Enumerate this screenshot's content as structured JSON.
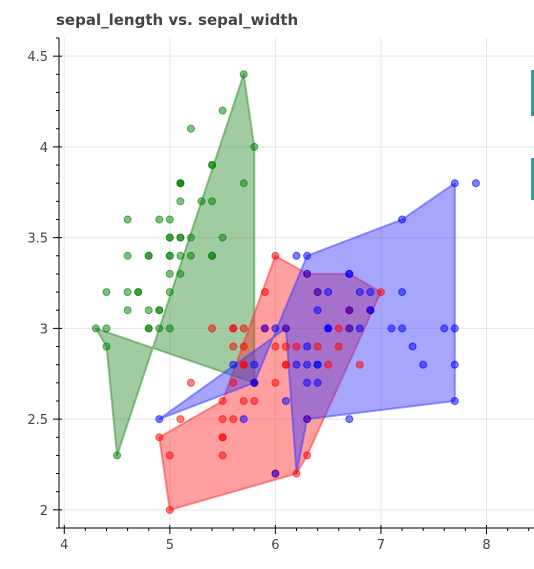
{
  "chart_data": {
    "type": "scatter",
    "title": "sepal_length vs. sepal_width",
    "xlabel": "",
    "ylabel": "",
    "xlim": [
      3.95,
      8.45
    ],
    "ylim": [
      1.9,
      4.6
    ],
    "grid": true,
    "x_ticks": [
      4,
      5,
      6,
      7,
      8
    ],
    "x_tick_labels": [
      "4",
      "5",
      "6",
      "7",
      "8"
    ],
    "y_ticks": [
      2,
      2.5,
      3,
      3.5,
      4,
      4.5
    ],
    "y_tick_labels": [
      "2",
      "2.5",
      "3",
      "3.5",
      "4",
      "4.5"
    ],
    "series": [
      {
        "color": "#008000",
        "fill_color": "#2e8b2e",
        "hull": [
          [
            4.3,
            3.0
          ],
          [
            4.4,
            2.9
          ],
          [
            4.5,
            2.3
          ],
          [
            5.7,
            4.4
          ],
          [
            5.8,
            4.0
          ],
          [
            5.8,
            2.7
          ]
        ],
        "points": [
          [
            5.1,
            3.5
          ],
          [
            4.9,
            3.0
          ],
          [
            4.7,
            3.2
          ],
          [
            4.6,
            3.1
          ],
          [
            5.0,
            3.6
          ],
          [
            5.4,
            3.9
          ],
          [
            4.6,
            3.4
          ],
          [
            5.0,
            3.4
          ],
          [
            4.4,
            2.9
          ],
          [
            4.9,
            3.1
          ],
          [
            5.4,
            3.7
          ],
          [
            4.8,
            3.4
          ],
          [
            4.8,
            3.0
          ],
          [
            4.3,
            3.0
          ],
          [
            5.8,
            4.0
          ],
          [
            5.7,
            4.4
          ],
          [
            5.4,
            3.9
          ],
          [
            5.1,
            3.5
          ],
          [
            5.7,
            3.8
          ],
          [
            5.1,
            3.8
          ],
          [
            5.4,
            3.4
          ],
          [
            5.1,
            3.7
          ],
          [
            4.6,
            3.6
          ],
          [
            5.1,
            3.3
          ],
          [
            4.8,
            3.4
          ],
          [
            5.0,
            3.0
          ],
          [
            5.0,
            3.4
          ],
          [
            5.2,
            3.5
          ],
          [
            5.2,
            3.4
          ],
          [
            4.7,
            3.2
          ],
          [
            4.8,
            3.1
          ],
          [
            5.4,
            3.4
          ],
          [
            5.2,
            4.1
          ],
          [
            5.5,
            4.2
          ],
          [
            4.9,
            3.1
          ],
          [
            5.0,
            3.2
          ],
          [
            5.5,
            3.5
          ],
          [
            4.9,
            3.6
          ],
          [
            4.4,
            3.0
          ],
          [
            5.1,
            3.4
          ],
          [
            5.0,
            3.5
          ],
          [
            4.5,
            2.3
          ],
          [
            4.4,
            3.2
          ],
          [
            5.0,
            3.5
          ],
          [
            5.1,
            3.8
          ],
          [
            4.8,
            3.0
          ],
          [
            5.1,
            3.8
          ],
          [
            4.6,
            3.2
          ],
          [
            5.3,
            3.7
          ],
          [
            5.0,
            3.3
          ]
        ]
      },
      {
        "color": "#ff0000",
        "fill_color": "#ff2a2a",
        "hull": [
          [
            4.9,
            2.4
          ],
          [
            5.0,
            2.0
          ],
          [
            6.2,
            2.2
          ],
          [
            6.3,
            2.3
          ],
          [
            7.0,
            3.2
          ],
          [
            6.7,
            3.3
          ],
          [
            6.3,
            3.3
          ],
          [
            6.0,
            3.4
          ],
          [
            5.5,
            2.6
          ]
        ],
        "points": [
          [
            7.0,
            3.2
          ],
          [
            6.4,
            3.2
          ],
          [
            6.9,
            3.1
          ],
          [
            5.5,
            2.3
          ],
          [
            6.5,
            2.8
          ],
          [
            5.7,
            2.8
          ],
          [
            6.3,
            3.3
          ],
          [
            4.9,
            2.4
          ],
          [
            6.6,
            2.9
          ],
          [
            5.2,
            2.7
          ],
          [
            5.0,
            2.0
          ],
          [
            5.9,
            3.0
          ],
          [
            6.0,
            2.2
          ],
          [
            6.1,
            2.9
          ],
          [
            5.6,
            2.9
          ],
          [
            6.7,
            3.1
          ],
          [
            5.6,
            3.0
          ],
          [
            5.8,
            2.7
          ],
          [
            6.2,
            2.2
          ],
          [
            5.6,
            2.5
          ],
          [
            5.9,
            3.2
          ],
          [
            6.1,
            2.8
          ],
          [
            6.3,
            2.5
          ],
          [
            6.1,
            2.8
          ],
          [
            6.4,
            2.9
          ],
          [
            6.6,
            3.0
          ],
          [
            6.8,
            2.8
          ],
          [
            6.7,
            3.0
          ],
          [
            6.0,
            2.9
          ],
          [
            5.7,
            2.6
          ],
          [
            5.5,
            2.4
          ],
          [
            5.5,
            2.4
          ],
          [
            5.8,
            2.7
          ],
          [
            6.0,
            2.7
          ],
          [
            5.4,
            3.0
          ],
          [
            6.0,
            3.4
          ],
          [
            6.7,
            3.1
          ],
          [
            6.3,
            2.3
          ],
          [
            5.6,
            3.0
          ],
          [
            5.5,
            2.5
          ],
          [
            5.5,
            2.6
          ],
          [
            6.1,
            3.0
          ],
          [
            5.8,
            2.6
          ],
          [
            5.0,
            2.3
          ],
          [
            5.6,
            2.7
          ],
          [
            5.7,
            3.0
          ],
          [
            5.7,
            2.9
          ],
          [
            6.2,
            2.9
          ],
          [
            5.1,
            2.5
          ],
          [
            5.7,
            2.8
          ]
        ]
      },
      {
        "color": "#0000ff",
        "fill_color": "#3a3aff",
        "hull": [
          [
            4.9,
            2.5
          ],
          [
            6.1,
            3.0
          ],
          [
            6.2,
            2.2
          ],
          [
            6.3,
            2.5
          ],
          [
            7.7,
            2.6
          ],
          [
            7.7,
            3.8
          ],
          [
            7.2,
            3.6
          ],
          [
            6.3,
            3.4
          ],
          [
            5.8,
            2.7
          ]
        ],
        "points": [
          [
            6.3,
            3.3
          ],
          [
            5.8,
            2.7
          ],
          [
            7.1,
            3.0
          ],
          [
            6.3,
            2.9
          ],
          [
            6.5,
            3.0
          ],
          [
            7.6,
            3.0
          ],
          [
            4.9,
            2.5
          ],
          [
            7.3,
            2.9
          ],
          [
            6.7,
            2.5
          ],
          [
            7.2,
            3.6
          ],
          [
            6.5,
            3.2
          ],
          [
            6.4,
            2.7
          ],
          [
            6.8,
            3.0
          ],
          [
            5.7,
            2.5
          ],
          [
            5.8,
            2.8
          ],
          [
            6.4,
            3.2
          ],
          [
            6.5,
            3.0
          ],
          [
            7.7,
            3.8
          ],
          [
            7.7,
            2.6
          ],
          [
            6.0,
            2.2
          ],
          [
            6.9,
            3.2
          ],
          [
            5.6,
            2.8
          ],
          [
            7.7,
            2.8
          ],
          [
            6.3,
            2.7
          ],
          [
            6.7,
            3.3
          ],
          [
            7.2,
            3.2
          ],
          [
            6.2,
            2.8
          ],
          [
            6.1,
            3.0
          ],
          [
            6.4,
            2.8
          ],
          [
            7.2,
            3.0
          ],
          [
            7.4,
            2.8
          ],
          [
            7.9,
            3.8
          ],
          [
            6.4,
            2.8
          ],
          [
            6.3,
            2.8
          ],
          [
            6.1,
            2.6
          ],
          [
            7.7,
            3.0
          ],
          [
            6.3,
            3.4
          ],
          [
            6.4,
            3.1
          ],
          [
            6.0,
            3.0
          ],
          [
            6.9,
            3.1
          ],
          [
            6.7,
            3.1
          ],
          [
            6.9,
            3.1
          ],
          [
            5.8,
            2.7
          ],
          [
            6.8,
            3.2
          ],
          [
            6.7,
            3.3
          ],
          [
            6.7,
            3.0
          ],
          [
            6.3,
            2.5
          ],
          [
            6.5,
            3.0
          ],
          [
            6.2,
            3.4
          ],
          [
            5.9,
            3.0
          ]
        ]
      }
    ]
  }
}
